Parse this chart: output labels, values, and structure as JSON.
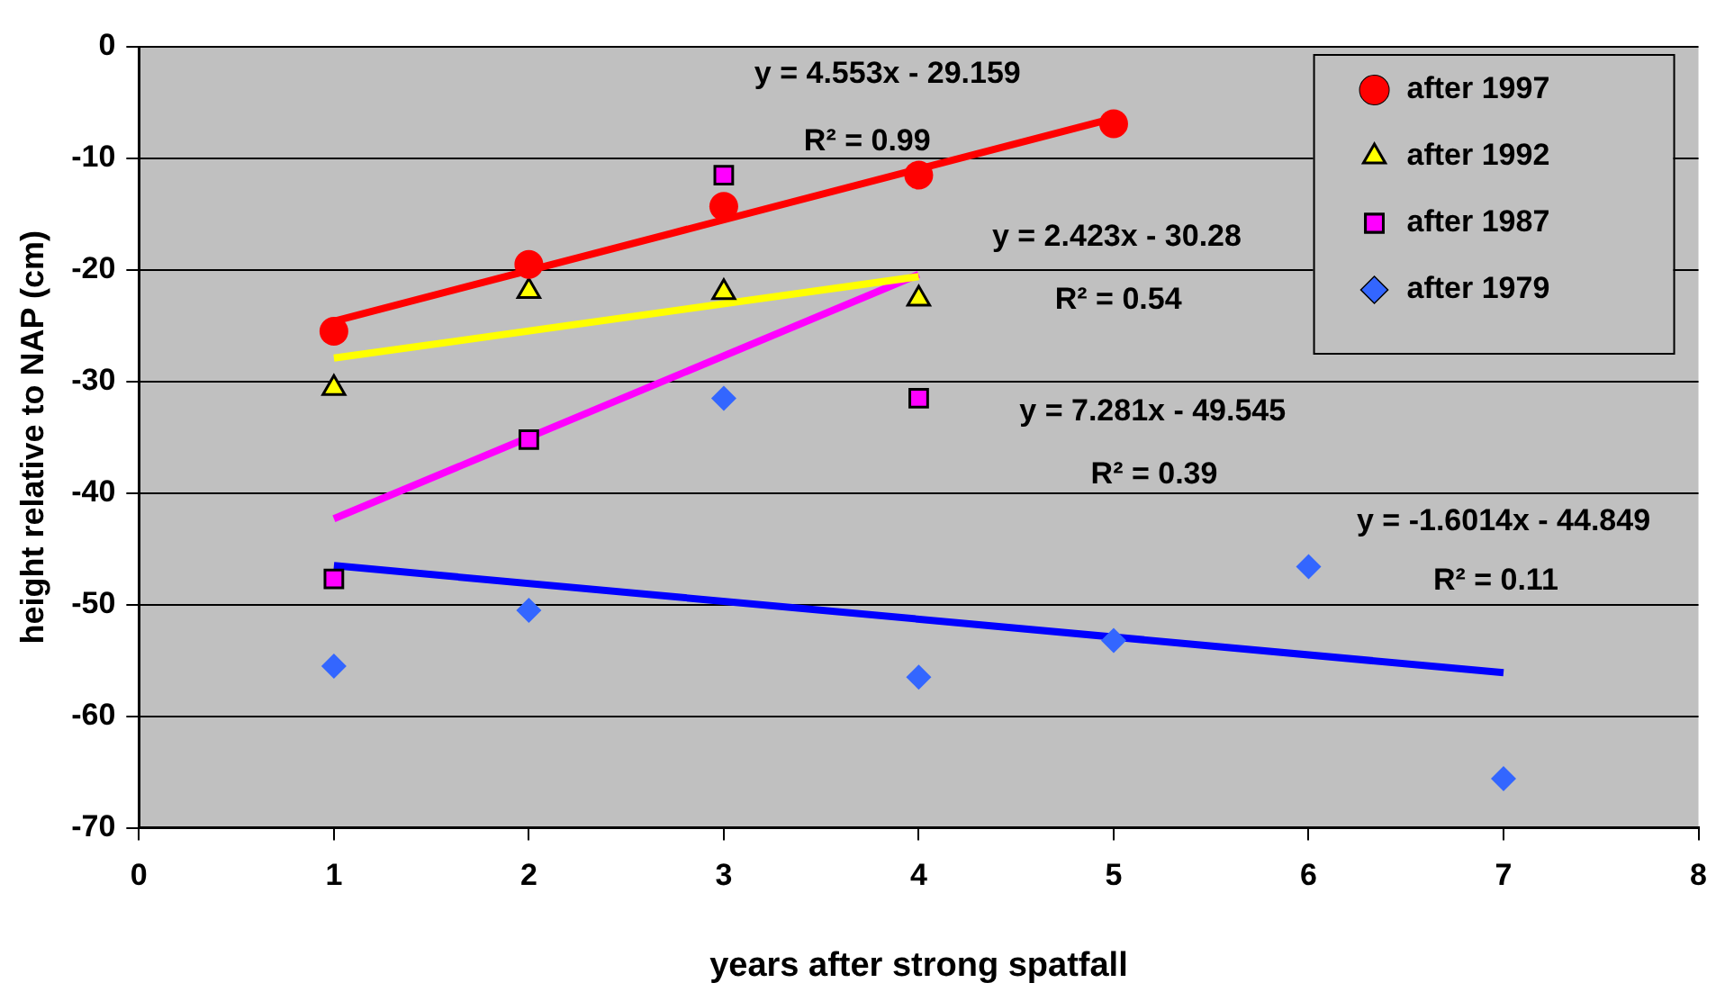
{
  "chart_data": {
    "type": "scatter",
    "xlabel": "years after strong spatfall",
    "ylabel": "height relative to NAP (cm)",
    "xlim": [
      0,
      8
    ],
    "xticks": [
      0,
      1,
      2,
      3,
      4,
      5,
      6,
      7,
      8
    ],
    "ylim": [
      -70,
      0
    ],
    "yticks": [
      -70,
      -60,
      -50,
      -40,
      -30,
      -20,
      -10,
      0
    ],
    "grid": "y",
    "legend": "top right",
    "series": [
      {
        "name": "after 1997",
        "marker": "circle",
        "color": "#ff0000",
        "x": [
          1,
          2,
          3,
          4,
          5
        ],
        "values": [
          -25.5,
          -19.5,
          -14.3,
          -11.5,
          -6.9
        ]
      },
      {
        "name": "after 1992",
        "marker": "triangle",
        "color": "#ffff00",
        "x": [
          1,
          2,
          3,
          4
        ],
        "values": [
          -30.6,
          -21.9,
          -22.0,
          -22.6
        ]
      },
      {
        "name": "after 1987",
        "marker": "square",
        "color": "#ff00ff",
        "x": [
          1,
          2,
          3,
          4
        ],
        "values": [
          -47.7,
          -35.2,
          -11.5,
          -31.5
        ]
      },
      {
        "name": "after 1979",
        "marker": "diamond",
        "color": "#3366ff",
        "x": [
          1,
          2,
          3,
          4,
          5,
          6,
          7
        ],
        "values": [
          -55.5,
          -50.5,
          -31.5,
          -56.5,
          -53.2,
          -46.6,
          -65.6
        ]
      },
      {
        "type": "line",
        "marker": "none",
        "color": "#ff0000",
        "x": [
          1,
          5
        ],
        "values": [
          -24.6,
          -6.4
        ]
      },
      {
        "type": "line",
        "marker": "none",
        "color": "#ffff00",
        "x": [
          1,
          4
        ],
        "values": [
          -27.9,
          -20.6
        ]
      },
      {
        "type": "line",
        "marker": "none",
        "color": "#ff00ff",
        "x": [
          1,
          4
        ],
        "values": [
          -42.3,
          -20.4
        ]
      },
      {
        "type": "line",
        "marker": "none",
        "color": "#0000ff",
        "x": [
          1,
          7
        ],
        "values": [
          -46.5,
          -56.1
        ]
      }
    ],
    "annotations": [
      "y = 4.553x - 29.159",
      "R² = 0.99",
      "y = 2.423x - 30.28",
      "R² = 0.54",
      "y = 7.281x - 49.545",
      "R² = 0.39",
      "y = -1.6014x - 44.849",
      "R² = 0.11"
    ]
  }
}
